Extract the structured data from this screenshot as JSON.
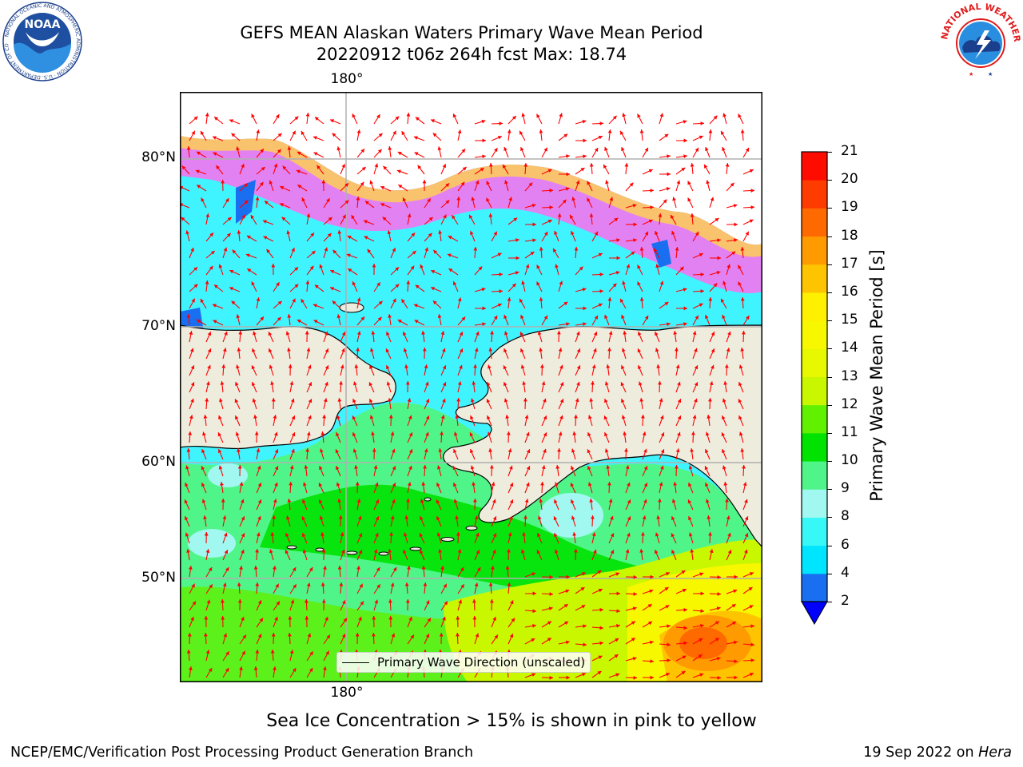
{
  "title": {
    "line1": "GEFS MEAN Alaskan Waters Primary Wave Mean Period",
    "line2": "20220912 t06z 264h fcst   Max: 18.74"
  },
  "map": {
    "lon_label_top": "180°",
    "lon_label_bottom": "180°",
    "lat_labels": [
      "80°N",
      "70°N",
      "60°N",
      "50°N"
    ],
    "legend_label": "Primary Wave Direction (unscaled)",
    "arrow_color": "#ff0000",
    "land_color": "#eeecdd",
    "gridline_color": "#b0b0b0"
  },
  "colorbar": {
    "label": "Primary Wave Mean Period [s]",
    "ticks": [
      "2",
      "4",
      "6",
      "8",
      "9",
      "10",
      "11",
      "12",
      "13",
      "14",
      "15",
      "16",
      "17",
      "18",
      "19",
      "20",
      "21"
    ],
    "colors": [
      "#1a6ef0",
      "#00e5ff",
      "#38f7f7",
      "#a0f8f0",
      "#50f58a",
      "#00e200",
      "#60f000",
      "#c8f700",
      "#e8f800",
      "#f7f700",
      "#fff000",
      "#ffc400",
      "#ff9a00",
      "#ff6a00",
      "#ff3c00",
      "#ff0c00"
    ],
    "extend_color": "#0000ff"
  },
  "caption": "Sea Ice Concentration > 15% is shown in pink to yellow",
  "footer": {
    "left": "NCEP/EMC/Verification Post Processing Product Generation Branch",
    "right_text": "19 Sep 2022 on ",
    "right_italic": "Hera"
  },
  "logos": {
    "noaa_text": "NOAA",
    "noaa_ring_text": "NATIONAL OCEANIC AND ATMOSPHERIC ADMINISTRATION · U.S. DEPARTMENT OF COMMERCE",
    "nws_ring_text": "NATIONAL WEATHER SERVICE"
  }
}
